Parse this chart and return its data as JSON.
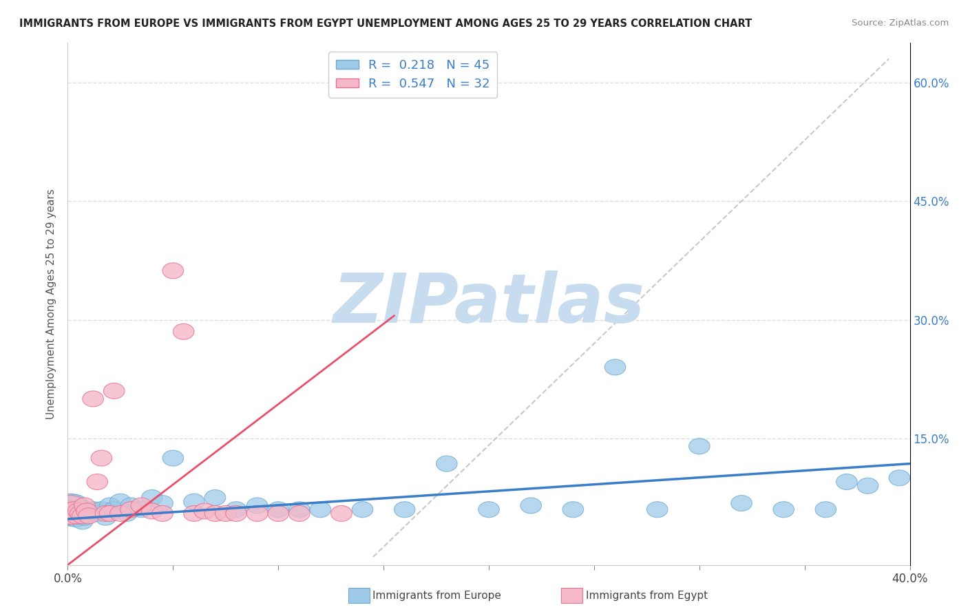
{
  "title": "IMMIGRANTS FROM EUROPE VS IMMIGRANTS FROM EGYPT UNEMPLOYMENT AMONG AGES 25 TO 29 YEARS CORRELATION CHART",
  "source_text": "Source: ZipAtlas.com",
  "ylabel": "Unemployment Among Ages 25 to 29 years",
  "xlim": [
    0.0,
    0.4
  ],
  "ylim": [
    -0.01,
    0.65
  ],
  "xticks": [
    0.0,
    0.05,
    0.1,
    0.15,
    0.2,
    0.25,
    0.3,
    0.35,
    0.4
  ],
  "ytick_positions": [
    0.0,
    0.15,
    0.3,
    0.45,
    0.6
  ],
  "ytick_labels": [
    "",
    "15.0%",
    "30.0%",
    "45.0%",
    "60.0%"
  ],
  "europe_color": "#9ECAE8",
  "europe_edge_color": "#6AAAD4",
  "egypt_color": "#F4B8C8",
  "egypt_edge_color": "#E87090",
  "europe_line_color": "#3A7DC9",
  "egypt_line_color": "#E8506A",
  "ref_line_color": "#C8C8C8",
  "europe_R": 0.218,
  "europe_N": 45,
  "egypt_R": 0.547,
  "egypt_N": 32,
  "legend_label_europe": "Immigrants from Europe",
  "legend_label_egypt": "Immigrants from Egypt",
  "watermark": "ZIPatlas",
  "watermark_color": "#C8DCF0",
  "europe_trend_x0": 0.0,
  "europe_trend_y0": 0.048,
  "europe_trend_x1": 0.4,
  "europe_trend_y1": 0.118,
  "egypt_trend_x0": 0.0,
  "egypt_trend_y0": -0.01,
  "egypt_trend_x1": 0.155,
  "egypt_trend_y1": 0.305,
  "ref_line_x0": 0.145,
  "ref_line_y0": 0.0,
  "ref_line_x1": 0.39,
  "ref_line_y1": 0.63,
  "europe_scatter_x": [
    0.001,
    0.002,
    0.003,
    0.004,
    0.005,
    0.006,
    0.007,
    0.008,
    0.009,
    0.01,
    0.012,
    0.014,
    0.016,
    0.018,
    0.02,
    0.022,
    0.025,
    0.028,
    0.03,
    0.035,
    0.04,
    0.045,
    0.05,
    0.06,
    0.07,
    0.08,
    0.09,
    0.1,
    0.11,
    0.12,
    0.14,
    0.16,
    0.18,
    0.2,
    0.22,
    0.24,
    0.26,
    0.28,
    0.3,
    0.32,
    0.34,
    0.36,
    0.37,
    0.38,
    0.395
  ],
  "europe_scatter_y": [
    0.06,
    0.055,
    0.065,
    0.05,
    0.055,
    0.06,
    0.045,
    0.05,
    0.06,
    0.055,
    0.06,
    0.055,
    0.06,
    0.05,
    0.065,
    0.06,
    0.07,
    0.055,
    0.065,
    0.06,
    0.075,
    0.068,
    0.125,
    0.07,
    0.075,
    0.06,
    0.065,
    0.06,
    0.06,
    0.06,
    0.06,
    0.06,
    0.118,
    0.06,
    0.065,
    0.06,
    0.24,
    0.06,
    0.14,
    0.068,
    0.06,
    0.06,
    0.095,
    0.09,
    0.1
  ],
  "europe_scatter_rx": [
    0.01,
    0.008,
    0.007,
    0.006,
    0.006,
    0.006,
    0.005,
    0.005,
    0.005,
    0.005,
    0.005,
    0.005,
    0.005,
    0.005,
    0.005,
    0.005,
    0.005,
    0.005,
    0.005,
    0.005,
    0.005,
    0.005,
    0.005,
    0.005,
    0.005,
    0.005,
    0.005,
    0.005,
    0.005,
    0.005,
    0.005,
    0.005,
    0.005,
    0.005,
    0.005,
    0.005,
    0.005,
    0.005,
    0.005,
    0.005,
    0.005,
    0.005,
    0.005,
    0.005,
    0.005
  ],
  "europe_scatter_ry": [
    0.02,
    0.016,
    0.014,
    0.012,
    0.012,
    0.012,
    0.01,
    0.01,
    0.01,
    0.01,
    0.01,
    0.01,
    0.01,
    0.01,
    0.01,
    0.01,
    0.01,
    0.01,
    0.01,
    0.01,
    0.01,
    0.01,
    0.01,
    0.01,
    0.01,
    0.01,
    0.01,
    0.01,
    0.01,
    0.01,
    0.01,
    0.01,
    0.01,
    0.01,
    0.01,
    0.01,
    0.01,
    0.01,
    0.01,
    0.01,
    0.01,
    0.01,
    0.01,
    0.01,
    0.01
  ],
  "egypt_scatter_x": [
    0.001,
    0.002,
    0.003,
    0.004,
    0.005,
    0.006,
    0.007,
    0.008,
    0.009,
    0.01,
    0.012,
    0.014,
    0.016,
    0.018,
    0.02,
    0.022,
    0.025,
    0.03,
    0.035,
    0.04,
    0.045,
    0.05,
    0.055,
    0.06,
    0.065,
    0.07,
    0.075,
    0.08,
    0.09,
    0.1,
    0.11,
    0.13
  ],
  "egypt_scatter_y": [
    0.06,
    0.055,
    0.058,
    0.052,
    0.058,
    0.055,
    0.052,
    0.065,
    0.058,
    0.052,
    0.2,
    0.095,
    0.125,
    0.055,
    0.055,
    0.21,
    0.055,
    0.06,
    0.065,
    0.058,
    0.055,
    0.362,
    0.285,
    0.055,
    0.058,
    0.055,
    0.055,
    0.055,
    0.055,
    0.055,
    0.055,
    0.055
  ],
  "egypt_scatter_rx": [
    0.009,
    0.007,
    0.006,
    0.005,
    0.005,
    0.005,
    0.005,
    0.005,
    0.005,
    0.005,
    0.005,
    0.005,
    0.005,
    0.005,
    0.005,
    0.005,
    0.005,
    0.005,
    0.005,
    0.005,
    0.005,
    0.005,
    0.005,
    0.005,
    0.005,
    0.005,
    0.005,
    0.005,
    0.005,
    0.005,
    0.005,
    0.005
  ],
  "egypt_scatter_ry": [
    0.018,
    0.014,
    0.012,
    0.01,
    0.01,
    0.01,
    0.01,
    0.01,
    0.01,
    0.01,
    0.01,
    0.01,
    0.01,
    0.01,
    0.01,
    0.01,
    0.01,
    0.01,
    0.01,
    0.01,
    0.01,
    0.01,
    0.01,
    0.01,
    0.01,
    0.01,
    0.01,
    0.01,
    0.01,
    0.01,
    0.01,
    0.01
  ]
}
